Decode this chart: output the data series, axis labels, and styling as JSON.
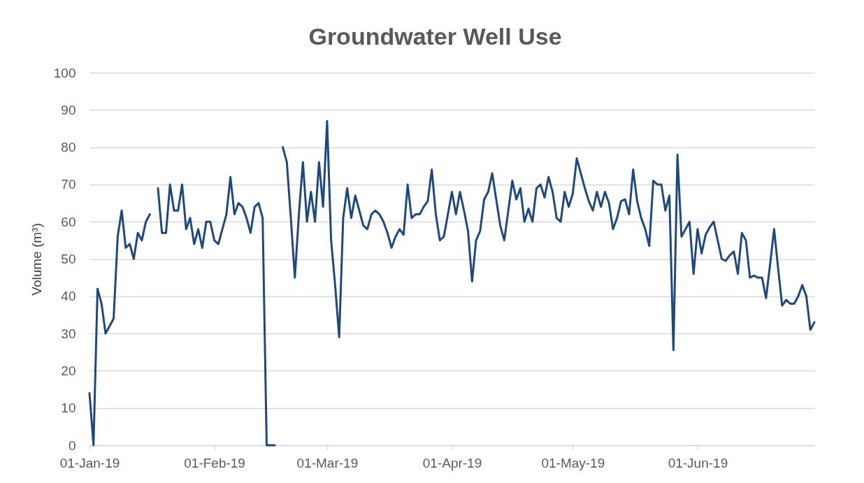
{
  "chart_data": {
    "type": "line",
    "title": "Groundwater Well Use",
    "ylabel": "Volume (m³)",
    "x": [
      "2019-01-01",
      "2019-01-02",
      "2019-01-03",
      "2019-01-04",
      "2019-01-05",
      "2019-01-06",
      "2019-01-07",
      "2019-01-08",
      "2019-01-09",
      "2019-01-10",
      "2019-01-11",
      "2019-01-12",
      "2019-01-13",
      "2019-01-14",
      "2019-01-15",
      "2019-01-16",
      "2019-01-17",
      "2019-01-18",
      "2019-01-19",
      "2019-01-20",
      "2019-01-21",
      "2019-01-22",
      "2019-01-23",
      "2019-01-24",
      "2019-01-25",
      "2019-01-26",
      "2019-01-27",
      "2019-01-28",
      "2019-01-29",
      "2019-01-30",
      "2019-01-31",
      "2019-02-01",
      "2019-02-02",
      "2019-02-03",
      "2019-02-04",
      "2019-02-05",
      "2019-02-06",
      "2019-02-07",
      "2019-02-08",
      "2019-02-09",
      "2019-02-10",
      "2019-02-11",
      "2019-02-12",
      "2019-02-13",
      "2019-02-14",
      "2019-02-15",
      "2019-02-16",
      "2019-02-17",
      "2019-02-18",
      "2019-02-19",
      "2019-02-20",
      "2019-02-21",
      "2019-02-22",
      "2019-02-23",
      "2019-02-24",
      "2019-02-25",
      "2019-02-26",
      "2019-02-27",
      "2019-02-28",
      "2019-03-01",
      "2019-03-02",
      "2019-03-03",
      "2019-03-04",
      "2019-03-05",
      "2019-03-06",
      "2019-03-07",
      "2019-03-08",
      "2019-03-09",
      "2019-03-10",
      "2019-03-11",
      "2019-03-12",
      "2019-03-13",
      "2019-03-14",
      "2019-03-15",
      "2019-03-16",
      "2019-03-17",
      "2019-03-18",
      "2019-03-19",
      "2019-03-20",
      "2019-03-21",
      "2019-03-22",
      "2019-03-23",
      "2019-03-24",
      "2019-03-25",
      "2019-03-26",
      "2019-03-27",
      "2019-03-28",
      "2019-03-29",
      "2019-03-30",
      "2019-03-31",
      "2019-04-01",
      "2019-04-02",
      "2019-04-03",
      "2019-04-04",
      "2019-04-05",
      "2019-04-06",
      "2019-04-07",
      "2019-04-08",
      "2019-04-09",
      "2019-04-10",
      "2019-04-11",
      "2019-04-12",
      "2019-04-13",
      "2019-04-14",
      "2019-04-15",
      "2019-04-16",
      "2019-04-17",
      "2019-04-18",
      "2019-04-19",
      "2019-04-20",
      "2019-04-21",
      "2019-04-22",
      "2019-04-23",
      "2019-04-24",
      "2019-04-25",
      "2019-04-26",
      "2019-04-27",
      "2019-04-28",
      "2019-04-29",
      "2019-04-30",
      "2019-05-01",
      "2019-05-02",
      "2019-05-03",
      "2019-05-04",
      "2019-05-05",
      "2019-05-06",
      "2019-05-07",
      "2019-05-08",
      "2019-05-09",
      "2019-05-10",
      "2019-05-11",
      "2019-05-12",
      "2019-05-13",
      "2019-05-14",
      "2019-05-15",
      "2019-05-16",
      "2019-05-17",
      "2019-05-18",
      "2019-05-19",
      "2019-05-20",
      "2019-05-21",
      "2019-05-22",
      "2019-05-23",
      "2019-05-24",
      "2019-05-25",
      "2019-05-26",
      "2019-05-27",
      "2019-05-28",
      "2019-05-29",
      "2019-05-30",
      "2019-05-31",
      "2019-06-01",
      "2019-06-02",
      "2019-06-03",
      "2019-06-04",
      "2019-06-05",
      "2019-06-06",
      "2019-06-07",
      "2019-06-08",
      "2019-06-09",
      "2019-06-10",
      "2019-06-11",
      "2019-06-12",
      "2019-06-13",
      "2019-06-14",
      "2019-06-15",
      "2019-06-16",
      "2019-06-17",
      "2019-06-18",
      "2019-06-19",
      "2019-06-20",
      "2019-06-21",
      "2019-06-22",
      "2019-06-23",
      "2019-06-24",
      "2019-06-25",
      "2019-06-26",
      "2019-06-27",
      "2019-06-28",
      "2019-06-29",
      "2019-06-30"
    ],
    "series": [
      {
        "color": "#1f497d",
        "values": [
          14,
          0,
          42,
          38,
          30,
          32,
          34,
          56,
          63,
          53,
          54,
          50,
          57,
          55,
          60,
          62,
          null,
          69,
          57,
          57,
          70,
          63,
          63,
          70,
          58,
          61,
          54,
          58,
          53,
          60,
          60,
          55,
          54,
          58,
          62,
          72,
          62,
          65,
          64,
          61,
          57,
          64,
          65,
          61,
          0,
          0,
          0,
          null,
          80,
          76,
          61,
          45,
          62,
          76,
          60,
          68,
          60,
          76,
          64,
          87,
          55,
          43,
          29,
          61,
          69,
          61,
          67,
          63,
          59,
          58,
          62,
          63,
          62,
          60,
          57,
          53,
          56,
          58,
          56.5,
          70,
          61,
          62,
          62,
          64,
          65.5,
          74,
          62,
          55,
          56,
          62,
          68,
          62,
          68,
          63,
          57.5,
          44,
          55,
          57.5,
          66,
          68,
          73,
          66,
          59,
          55,
          63,
          71,
          66,
          69,
          60,
          63.5,
          60,
          69,
          70,
          66.5,
          72,
          68,
          61,
          60,
          68,
          64,
          67.5,
          77,
          73,
          69,
          65.5,
          63,
          68,
          64,
          68,
          65,
          58,
          61,
          65.5,
          66,
          62,
          74,
          65.5,
          61,
          58,
          53.5,
          71,
          70,
          70,
          63,
          67,
          25.5,
          78,
          56,
          58,
          60,
          46,
          58,
          51.5,
          56.5,
          58.5,
          60,
          55,
          50,
          49.5,
          51,
          52,
          46,
          57,
          55,
          45,
          45.5,
          45,
          45,
          39.5,
          48.5,
          58,
          47.5,
          37.5,
          39,
          38,
          38,
          40,
          43,
          40,
          31,
          33
        ]
      }
    ],
    "xlim": [
      "2019-01-01",
      "2019-06-30"
    ],
    "xticks": [
      {
        "value": "2019-01-01",
        "label": "01-Jan-19"
      },
      {
        "value": "2019-02-01",
        "label": "01-Feb-19"
      },
      {
        "value": "2019-03-01",
        "label": "01-Mar-19"
      },
      {
        "value": "2019-04-01",
        "label": "01-Apr-19"
      },
      {
        "value": "2019-05-01",
        "label": "01-May-19"
      },
      {
        "value": "2019-06-01",
        "label": "01-Jun-19"
      }
    ],
    "ylim": [
      0,
      100
    ],
    "yticks": [
      0,
      10,
      20,
      30,
      40,
      50,
      60,
      70,
      80,
      90,
      100
    ],
    "grid": "y",
    "line_style": "solid"
  }
}
